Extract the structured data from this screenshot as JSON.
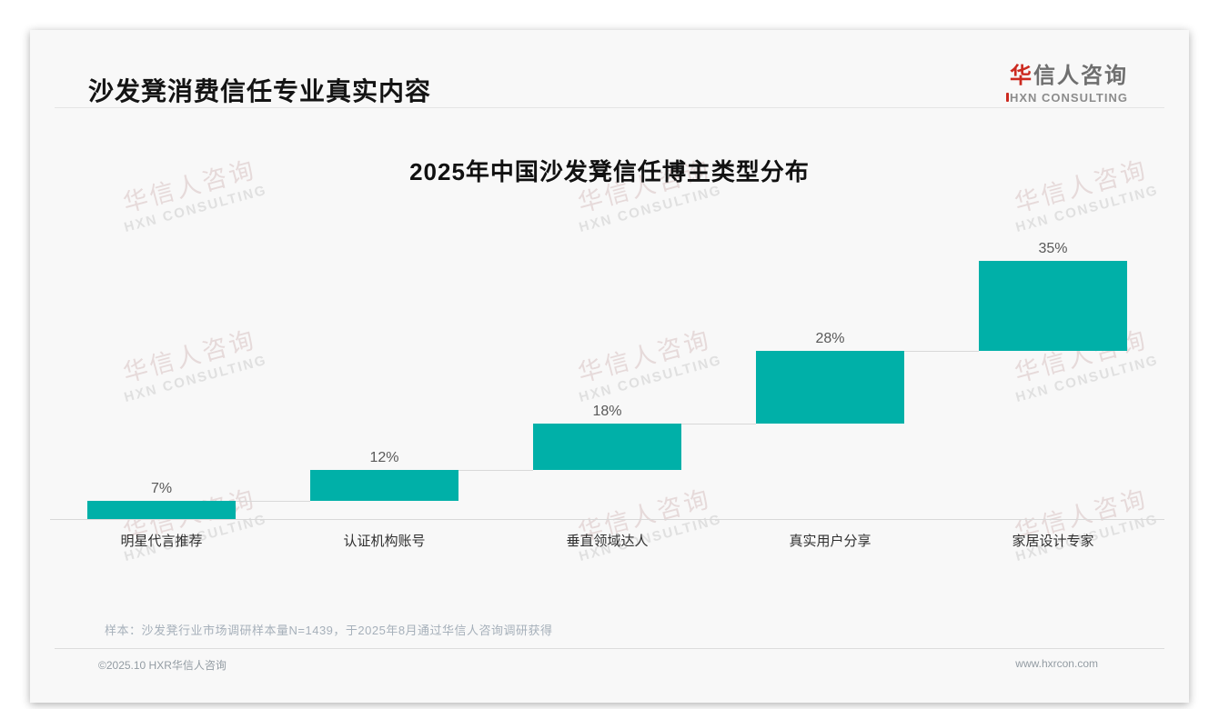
{
  "page": {
    "title": "沙发凳消费信任专业真实内容",
    "logo": {
      "cn_first": "华",
      "cn_rest": "信人咨询",
      "en": "HXN CONSULTING"
    },
    "watermark": {
      "line1": "华信人咨询",
      "line2": "HXN CONSULTING"
    },
    "note": "样本：沙发凳行业市场调研样本量N=1439，于2025年8月通过华信人咨询调研获得",
    "footer": {
      "left": "©2025.10 HXR华信人咨询",
      "right": "www.hxrcon.com"
    }
  },
  "chart_data": {
    "type": "bar",
    "subtype": "waterfall-steps",
    "title": "2025年中国沙发凳信任博主类型分布",
    "categories": [
      "明星代言推荐",
      "认证机构账号",
      "垂直领域达人",
      "真实用户分享",
      "家居设计专家"
    ],
    "values": [
      7,
      12,
      18,
      28,
      35
    ],
    "value_labels": [
      "7%",
      "12%",
      "18%",
      "28%",
      "35%"
    ],
    "cumulative": [
      7,
      19,
      37,
      65,
      100
    ],
    "unit": "%",
    "ylim": [
      0,
      100
    ],
    "bar_color": "#00b0a8",
    "value_label_color": "#595959",
    "connector_color": "#d8d8d8",
    "grid": false,
    "legend": false,
    "baseline_axis": true
  },
  "colors": {
    "accent_red": "#cc2a20",
    "teal": "#00b0a8",
    "card_bg": "#f8f8f8"
  }
}
